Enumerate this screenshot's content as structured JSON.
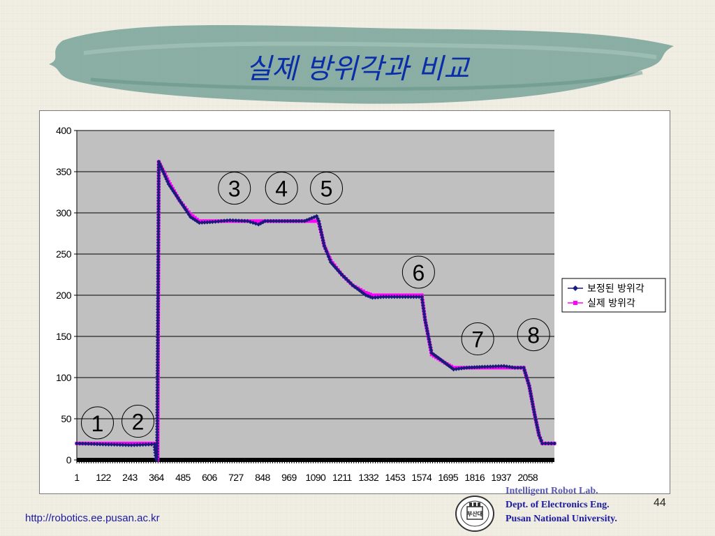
{
  "slide": {
    "title": "실제 방위각과 비교",
    "page_number": "44",
    "footer_url": "http://robotics.ee.pusan.ac.kr",
    "lab_lines": [
      "Intelligent Robot Lab.",
      "Dept. of Electronics Eng.",
      "Pusan National  University."
    ],
    "logo_text": "부산대"
  },
  "colors": {
    "title": "#0a2ea8",
    "plot_bg": "#c0c0c0",
    "series_corrected": "#1a1a7a",
    "series_actual": "#ff00ff",
    "marker_circle": "#000000"
  },
  "chart_data": {
    "type": "line",
    "title": "",
    "xlabel": "",
    "ylabel": "",
    "ylim": [
      0,
      400
    ],
    "yticks": [
      "0",
      "50",
      "100",
      "150",
      "200",
      "250",
      "300",
      "350",
      "400"
    ],
    "xlim": [
      1,
      2180
    ],
    "xticks": [
      "1",
      "122",
      "243",
      "364",
      "485",
      "606",
      "727",
      "848",
      "969",
      "1090",
      "1211",
      "1332",
      "1453",
      "1574",
      "1695",
      "1816",
      "1937",
      "2058"
    ],
    "grid": "horizontal",
    "legend_position": "right",
    "series": [
      {
        "name": "보정된 방위각",
        "marker": "diamond",
        "color": "#1a1a7a",
        "points": [
          [
            1,
            20
          ],
          [
            120,
            19
          ],
          [
            250,
            18
          ],
          [
            355,
            19
          ],
          [
            362,
            2
          ],
          [
            367,
            0
          ],
          [
            375,
            362
          ],
          [
            420,
            335
          ],
          [
            470,
            315
          ],
          [
            520,
            295
          ],
          [
            560,
            288
          ],
          [
            620,
            289
          ],
          [
            700,
            291
          ],
          [
            780,
            290
          ],
          [
            830,
            286
          ],
          [
            860,
            290
          ],
          [
            950,
            290
          ],
          [
            1040,
            290
          ],
          [
            1095,
            296
          ],
          [
            1105,
            290
          ],
          [
            1130,
            260
          ],
          [
            1160,
            240
          ],
          [
            1210,
            225
          ],
          [
            1260,
            212
          ],
          [
            1320,
            200
          ],
          [
            1350,
            197
          ],
          [
            1400,
            198
          ],
          [
            1500,
            198
          ],
          [
            1550,
            198
          ],
          [
            1575,
            198
          ],
          [
            1590,
            170
          ],
          [
            1620,
            130
          ],
          [
            1680,
            118
          ],
          [
            1720,
            110
          ],
          [
            1780,
            112
          ],
          [
            1850,
            113
          ],
          [
            1950,
            114
          ],
          [
            2000,
            112
          ],
          [
            2040,
            112
          ],
          [
            2065,
            90
          ],
          [
            2090,
            55
          ],
          [
            2110,
            30
          ],
          [
            2125,
            20
          ],
          [
            2180,
            20
          ]
        ]
      },
      {
        "name": "실제 방위각",
        "marker": "square",
        "color": "#ff00ff",
        "points": [
          [
            1,
            20
          ],
          [
            120,
            20
          ],
          [
            250,
            20
          ],
          [
            358,
            20
          ],
          [
            364,
            10
          ],
          [
            370,
            0
          ],
          [
            375,
            362
          ],
          [
            420,
            338
          ],
          [
            470,
            315
          ],
          [
            520,
            298
          ],
          [
            560,
            290
          ],
          [
            620,
            290
          ],
          [
            700,
            290
          ],
          [
            800,
            290
          ],
          [
            900,
            290
          ],
          [
            1000,
            290
          ],
          [
            1090,
            290
          ],
          [
            1105,
            288
          ],
          [
            1130,
            260
          ],
          [
            1160,
            242
          ],
          [
            1210,
            225
          ],
          [
            1260,
            212
          ],
          [
            1320,
            203
          ],
          [
            1350,
            200
          ],
          [
            1450,
            200
          ],
          [
            1550,
            200
          ],
          [
            1575,
            200
          ],
          [
            1590,
            170
          ],
          [
            1620,
            128
          ],
          [
            1680,
            118
          ],
          [
            1720,
            112
          ],
          [
            1800,
            112
          ],
          [
            1900,
            112
          ],
          [
            2000,
            112
          ],
          [
            2040,
            112
          ],
          [
            2065,
            90
          ],
          [
            2090,
            55
          ],
          [
            2110,
            30
          ],
          [
            2125,
            20
          ],
          [
            2180,
            20
          ]
        ]
      }
    ],
    "annotations": [
      {
        "label": "1",
        "x": 95,
        "y": 45
      },
      {
        "label": "2",
        "x": 280,
        "y": 47
      },
      {
        "label": "3",
        "x": 720,
        "y": 330
      },
      {
        "label": "4",
        "x": 935,
        "y": 330
      },
      {
        "label": "5",
        "x": 1140,
        "y": 330
      },
      {
        "label": "6",
        "x": 1560,
        "y": 228
      },
      {
        "label": "7",
        "x": 1830,
        "y": 147
      },
      {
        "label": "8",
        "x": 2085,
        "y": 152
      }
    ]
  }
}
